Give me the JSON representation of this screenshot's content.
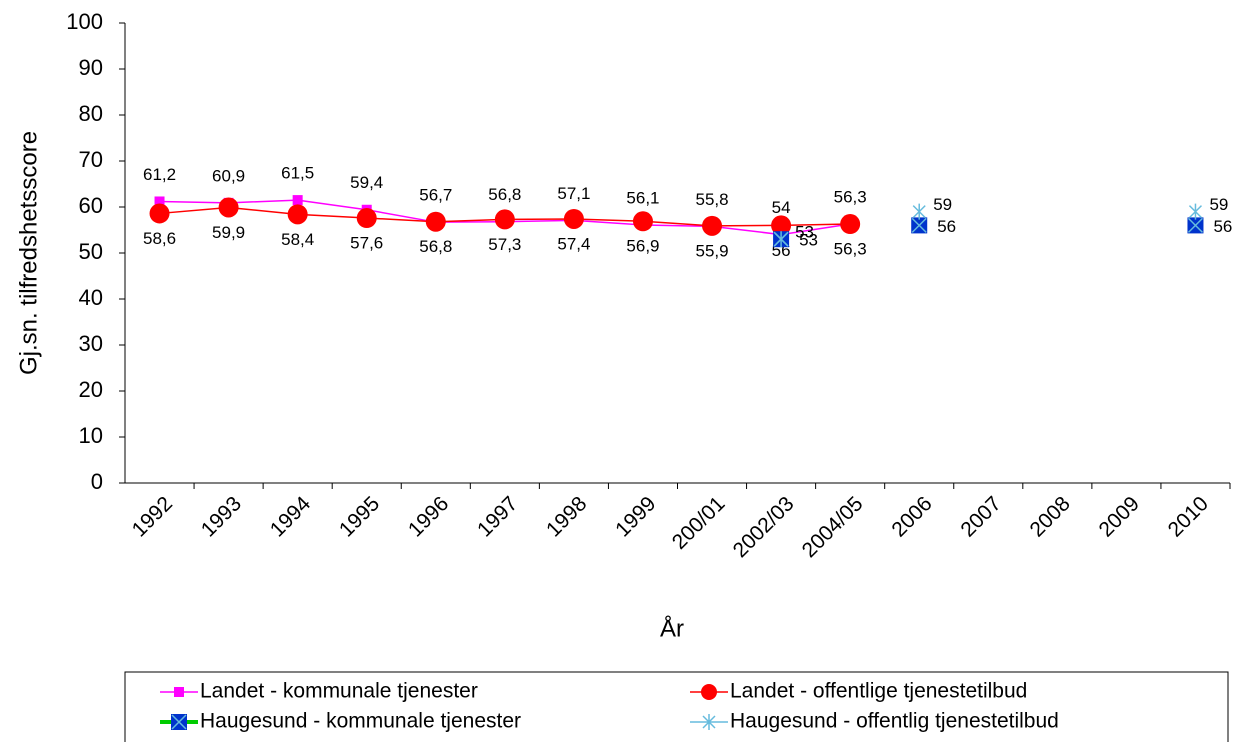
{
  "chart_data": {
    "type": "line",
    "x_label": "År",
    "y_label": "Gj.sn. tilfredshetsscore",
    "categories": [
      "1992",
      "1993",
      "1994",
      "1995",
      "1996",
      "1997",
      "1998",
      "1999",
      "200/01",
      "2002/03",
      "2004/05",
      "2006",
      "2007",
      "2008",
      "2009",
      "2010"
    ],
    "ylim": [
      0,
      100
    ],
    "yticks": [
      0,
      10,
      20,
      30,
      40,
      50,
      60,
      70,
      80,
      90,
      100
    ],
    "legend": "bottom",
    "series": [
      {
        "name": "Landet - kommunale tjenester",
        "color": "#ff00ff",
        "marker": "square",
        "marker_color": "#ff00ff",
        "values": [
          61.2,
          60.9,
          61.5,
          59.4,
          56.7,
          56.8,
          57.1,
          56.1,
          55.8,
          54,
          56.3,
          null,
          null,
          null,
          null,
          null
        ],
        "value_labels": [
          "61,2",
          "60,9",
          "61,5",
          "59,4",
          "56,7",
          "56,8",
          "57,1",
          "56,1",
          "55,8",
          "54",
          "56,3",
          null,
          null,
          null,
          null,
          null
        ]
      },
      {
        "name": "Landet - offentlige tjenestetilbud",
        "color": "#ff0000",
        "marker": "circle",
        "marker_color": "#ff0000",
        "values": [
          58.6,
          59.9,
          58.4,
          57.6,
          56.8,
          57.3,
          57.4,
          56.9,
          55.9,
          56,
          56.3,
          null,
          null,
          null,
          null,
          null
        ],
        "value_labels": [
          "58,6",
          "59,9",
          "58,4",
          "57,6",
          "56,8",
          "57,3",
          "57,4",
          "56,9",
          "55,9",
          "56",
          "56,3",
          null,
          null,
          null,
          null,
          null
        ]
      },
      {
        "name": "Haugesund - kommunale tjenester",
        "color": "#00cc00",
        "marker": "xsquare",
        "marker_color": "#0033cc",
        "values": [
          null,
          null,
          null,
          null,
          null,
          null,
          null,
          null,
          null,
          53,
          null,
          56,
          null,
          null,
          null,
          56
        ]
      },
      {
        "name": "Haugesund - offentlig tjenestetilbud",
        "color": "#66bbdd",
        "marker": "star",
        "marker_color": "#66bbdd",
        "values": [
          null,
          null,
          null,
          null,
          null,
          null,
          null,
          null,
          null,
          53,
          null,
          59,
          null,
          null,
          null,
          59
        ]
      }
    ]
  }
}
